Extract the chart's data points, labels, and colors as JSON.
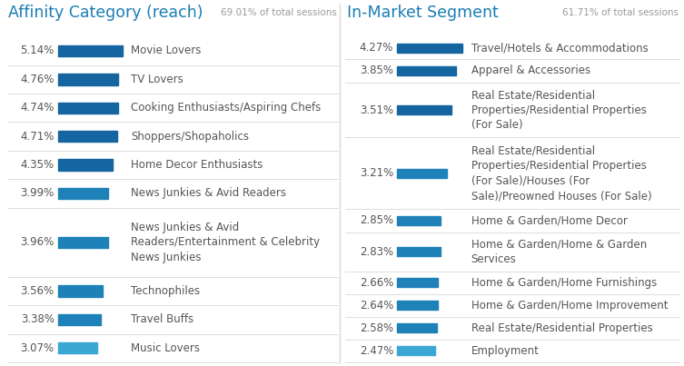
{
  "left_title": "Affinity Category (reach)",
  "left_subtitle": "69.01% of total sessions",
  "left_title_color": "#1a7db5",
  "left_items": [
    {
      "pct": "5.14%",
      "value": 5.14,
      "label": "Movie Lovers",
      "lines": 1
    },
    {
      "pct": "4.76%",
      "value": 4.76,
      "label": "TV Lovers",
      "lines": 1
    },
    {
      "pct": "4.74%",
      "value": 4.74,
      "label": "Cooking Enthusiasts/Aspiring Chefs",
      "lines": 1
    },
    {
      "pct": "4.71%",
      "value": 4.71,
      "label": "Shoppers/Shopaholics",
      "lines": 1
    },
    {
      "pct": "4.35%",
      "value": 4.35,
      "label": "Home Decor Enthusiasts",
      "lines": 1
    },
    {
      "pct": "3.99%",
      "value": 3.99,
      "label": "News Junkies & Avid Readers",
      "lines": 1
    },
    {
      "pct": "3.96%",
      "value": 3.96,
      "label": "News Junkies & Avid\nReaders/Entertainment & Celebrity\nNews Junkies",
      "lines": 3
    },
    {
      "pct": "3.56%",
      "value": 3.56,
      "label": "Technophiles",
      "lines": 1
    },
    {
      "pct": "3.38%",
      "value": 3.38,
      "label": "Travel Buffs",
      "lines": 1
    },
    {
      "pct": "3.07%",
      "value": 3.07,
      "label": "Music Lovers",
      "lines": 1
    }
  ],
  "right_title": "In-Market Segment",
  "right_subtitle": "61.71% of total sessions",
  "right_title_color": "#1a7db5",
  "right_items": [
    {
      "pct": "4.27%",
      "value": 4.27,
      "label": "Travel/Hotels & Accommodations",
      "lines": 1
    },
    {
      "pct": "3.85%",
      "value": 3.85,
      "label": "Apparel & Accessories",
      "lines": 1
    },
    {
      "pct": "3.51%",
      "value": 3.51,
      "label": "Real Estate/Residential\nProperties/Residential Properties\n(For Sale)",
      "lines": 3
    },
    {
      "pct": "3.21%",
      "value": 3.21,
      "label": "Real Estate/Residential\nProperties/Residential Properties\n(For Sale)/Houses (For\nSale)/Preowned Houses (For Sale)",
      "lines": 4
    },
    {
      "pct": "2.85%",
      "value": 2.85,
      "label": "Home & Garden/Home Decor",
      "lines": 1
    },
    {
      "pct": "2.83%",
      "value": 2.83,
      "label": "Home & Garden/Home & Garden\nServices",
      "lines": 2
    },
    {
      "pct": "2.66%",
      "value": 2.66,
      "label": "Home & Garden/Home Furnishings",
      "lines": 1
    },
    {
      "pct": "2.64%",
      "value": 2.64,
      "label": "Home & Garden/Home Improvement",
      "lines": 1
    },
    {
      "pct": "2.58%",
      "value": 2.58,
      "label": "Real Estate/Residential Properties",
      "lines": 1
    },
    {
      "pct": "2.47%",
      "value": 2.47,
      "label": "Employment",
      "lines": 1
    }
  ],
  "bar_color_dark": "#1565a0",
  "bar_color_light": "#3ba8d4",
  "divider_color": "#d8d8d8",
  "text_color_dark": "#555555",
  "text_color_subtitle": "#999999",
  "bg_color": "#ffffff",
  "font_size_title": 12.5,
  "font_size_label": 8.5,
  "font_size_pct": 8.5,
  "font_size_subtitle": 7.5
}
